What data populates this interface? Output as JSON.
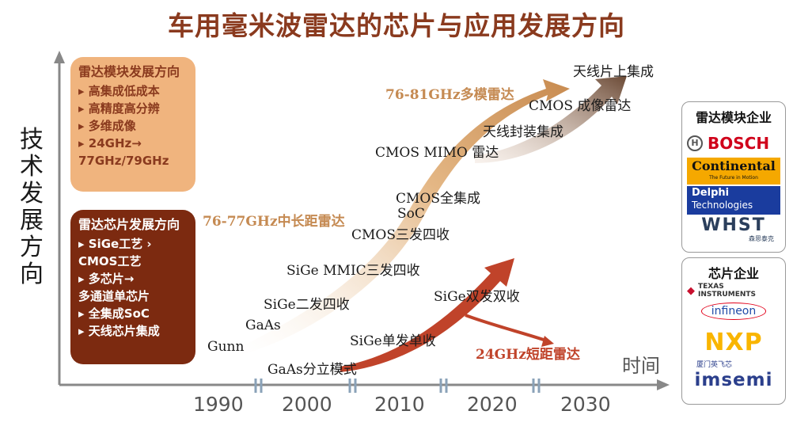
{
  "title": "车用毫米波雷达的芯片与应用发展方向",
  "y_axis_label": "技术发展方向",
  "x_axis_label": "时间",
  "x_ticks": [
    "1990",
    "2000",
    "2010",
    "2020",
    "2030"
  ],
  "module_box": {
    "heading": "雷达模块发展方向",
    "items": [
      "高集成低成本",
      "高精度高分辨",
      "多维成像",
      "24GHz→"
    ],
    "continuation": "77GHz/79GHz"
  },
  "chip_box": {
    "heading": "雷达芯片发展方向",
    "lines": [
      "SiGe工艺 ›",
      "CMOS工艺",
      "多芯片→",
      "多通道单芯片",
      "全集成SoC",
      "天线芯片集成"
    ]
  },
  "timeline_labels": {
    "gunn": "Gunn",
    "gaas": "GaAs",
    "sige_2t4r": "SiGe二发四收",
    "sige_mmic": "SiGe MMIC三发四收",
    "mid_long": "76-77GHz中长距雷达",
    "cmos_3t4r": "CMOS三发四收",
    "soc": "SoC",
    "cmos_full": "CMOS全集成",
    "cmos_mimo": "CMOS MIMO 雷达",
    "aip": "天线封装集成",
    "multimode": "76-81GHz多模雷达",
    "cmos_imaging": "CMOS 成像雷达",
    "aoc": "天线片上集成",
    "gaas_discrete": "GaAs分立模式",
    "sige_1t1r": "SiGe单发单收",
    "sige_2t2r": "SiGe双发双收",
    "short_range": "24GHz短距雷达"
  },
  "module_companies": {
    "heading": "雷达模块企业",
    "bosch": "BOSCH",
    "continental": "Continental",
    "continental_tagline": "The Future in Motion",
    "delphi": "Delphi",
    "delphi_sub": "Technologies",
    "whst": "WHST",
    "whst_sub": "森思泰克"
  },
  "chip_companies": {
    "heading": "芯片企业",
    "ti": "TEXAS INSTRUMENTS",
    "infineon": "infineon",
    "nxp": "NXP",
    "imsemi_top": "厦门英飞芯",
    "imsemi": "imsemi"
  },
  "colors": {
    "title": "#8a3a1e",
    "module_box": "#f0b47e",
    "chip_box": "#7c2a10",
    "tan_arrow": "#d9a46c",
    "red_arrow": "#c0432a",
    "dark_arrow": "#6b4a36"
  }
}
